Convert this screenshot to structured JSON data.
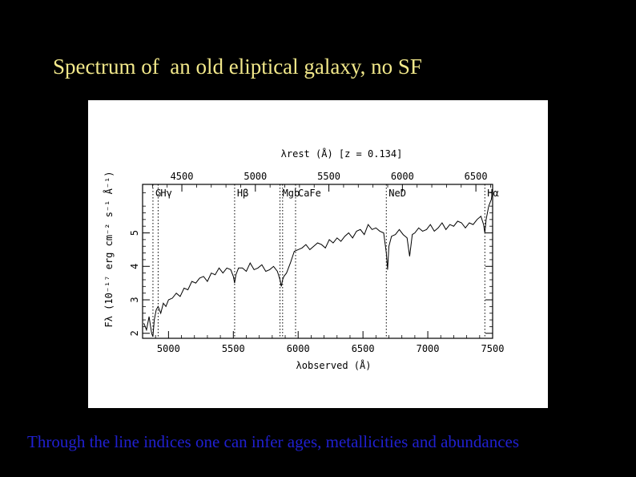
{
  "slide": {
    "title": "Spectrum of  an old eliptical galaxy, no SF",
    "caption": "Through the line indices one can infer ages, metallicities and abundances"
  },
  "colors": {
    "background": "#000000",
    "title": "#f2e88a",
    "caption": "#2020d0",
    "plot_bg": "#ffffff"
  },
  "chart_data": {
    "type": "line",
    "title": "",
    "xlabel": "λobserved (Å)",
    "ylabel": "Fλ (10⁻¹⁷ erg cm⁻² s⁻¹ Å⁻¹)",
    "top_axis_label": "λrest (Å) [z = 0.134]",
    "xlim": [
      4800,
      7500
    ],
    "ylim": [
      1.85,
      6.45
    ],
    "x_ticks": [
      5000,
      5500,
      6000,
      6500,
      7000,
      7500
    ],
    "y_ticks": [
      2,
      3,
      4,
      5
    ],
    "top_ticks": [
      4500,
      5000,
      5500,
      6000,
      6500
    ],
    "redshift": 0.134,
    "grid": false,
    "spectral_lines": [
      {
        "label": "G",
        "lambda_obs": 4880
      },
      {
        "label": "Hγ",
        "lambda_obs": 4920
      },
      {
        "label": "Hβ",
        "lambda_obs": 5510
      },
      {
        "label": "Mgb",
        "lambda_obs": 5860
      },
      {
        "label": "",
        "lambda_obs": 5880
      },
      {
        "label": "CaFe",
        "lambda_obs": 5980
      },
      {
        "label": "NeD",
        "lambda_obs": 6680
      },
      {
        "label": "Hα",
        "lambda_obs": 7440
      }
    ],
    "series": [
      {
        "x": [
          4810,
          4830,
          4850,
          4870,
          4880,
          4890,
          4905,
          4920,
          4940,
          4960,
          4980,
          5000,
          5030,
          5060,
          5090,
          5120,
          5150,
          5180,
          5210,
          5240,
          5270,
          5300,
          5330,
          5360,
          5390,
          5420,
          5450,
          5480,
          5500,
          5510,
          5520,
          5540,
          5570,
          5600,
          5630,
          5660,
          5690,
          5720,
          5750,
          5780,
          5810,
          5840,
          5860,
          5870,
          5880,
          5890,
          5910,
          5940,
          5970,
          6000,
          6030,
          6060,
          6090,
          6120,
          6150,
          6180,
          6210,
          6240,
          6270,
          6300,
          6330,
          6360,
          6390,
          6420,
          6450,
          6480,
          6510,
          6540,
          6570,
          6600,
          6630,
          6660,
          6680,
          6690,
          6700,
          6720,
          6750,
          6780,
          6810,
          6840,
          6860,
          6880,
          6900,
          6930,
          6960,
          6990,
          7020,
          7050,
          7080,
          7110,
          7140,
          7170,
          7200,
          7230,
          7260,
          7290,
          7320,
          7350,
          7380,
          7410,
          7430,
          7440,
          7450,
          7470,
          7490,
          7500
        ],
        "values": [
          2.3,
          2.1,
          2.5,
          2.0,
          1.9,
          2.4,
          2.7,
          2.8,
          2.6,
          2.9,
          2.8,
          3.0,
          3.05,
          3.2,
          3.1,
          3.35,
          3.3,
          3.55,
          3.5,
          3.65,
          3.7,
          3.55,
          3.8,
          3.75,
          3.95,
          3.8,
          3.95,
          3.9,
          3.7,
          3.5,
          3.75,
          3.95,
          3.95,
          3.85,
          4.1,
          3.9,
          3.95,
          4.05,
          3.85,
          3.9,
          4.0,
          3.85,
          3.6,
          3.4,
          3.6,
          3.7,
          3.8,
          4.1,
          4.45,
          4.5,
          4.55,
          4.65,
          4.5,
          4.6,
          4.7,
          4.65,
          4.55,
          4.8,
          4.7,
          4.85,
          4.75,
          4.9,
          5.0,
          4.85,
          5.05,
          5.1,
          4.95,
          5.25,
          5.1,
          5.15,
          5.05,
          5.0,
          4.4,
          3.9,
          4.6,
          4.9,
          4.95,
          5.1,
          4.95,
          4.85,
          4.3,
          4.95,
          5.0,
          5.15,
          5.05,
          5.1,
          5.25,
          5.05,
          5.15,
          5.3,
          5.1,
          5.25,
          5.2,
          5.35,
          5.3,
          5.15,
          5.3,
          5.25,
          5.4,
          5.5,
          5.25,
          5.0,
          5.4,
          5.8,
          6.0,
          6.3
        ]
      }
    ]
  }
}
